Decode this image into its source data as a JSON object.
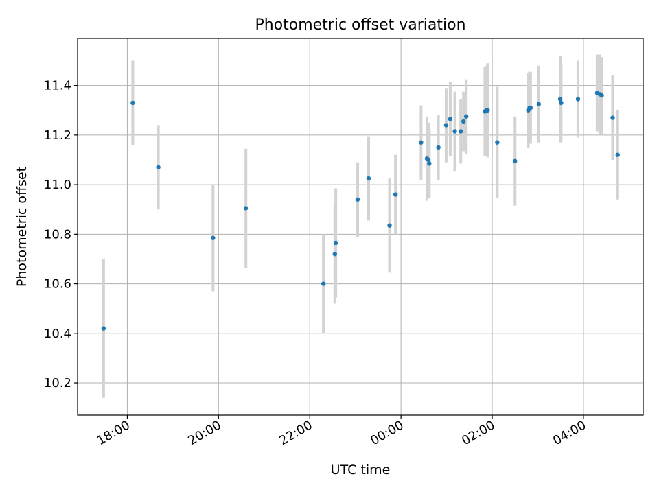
{
  "chart_data": {
    "type": "scatter",
    "title": "Photometric offset variation",
    "xlabel": "UTC time",
    "ylabel": "Photometric offset",
    "x_unit": "hours since 00:00 UTC (negative = previous evening)",
    "xlim": [
      -7.09,
      5.31
    ],
    "ylim": [
      10.07,
      11.59
    ],
    "x_ticks": [
      {
        "value": -6,
        "label": "18:00"
      },
      {
        "value": -4,
        "label": "20:00"
      },
      {
        "value": -2,
        "label": "22:00"
      },
      {
        "value": 0,
        "label": "00:00"
      },
      {
        "value": 2,
        "label": "02:00"
      },
      {
        "value": 4,
        "label": "04:00"
      }
    ],
    "y_ticks": [
      {
        "value": 10.2,
        "label": "10.2"
      },
      {
        "value": 10.4,
        "label": "10.4"
      },
      {
        "value": 10.6,
        "label": "10.6"
      },
      {
        "value": 10.8,
        "label": "10.8"
      },
      {
        "value": 11.0,
        "label": "11.0"
      },
      {
        "value": 11.2,
        "label": "11.2"
      },
      {
        "value": 11.4,
        "label": "11.4"
      }
    ],
    "grid": true,
    "colors": {
      "point": "#1f77b4",
      "errorbar": "#d3d3d3",
      "grid": "#b0b0b0"
    },
    "points": [
      {
        "x": -6.52,
        "y": 10.42,
        "err": 0.28
      },
      {
        "x": -5.88,
        "y": 11.33,
        "err": 0.17
      },
      {
        "x": -5.32,
        "y": 11.07,
        "err": 0.17
      },
      {
        "x": -4.12,
        "y": 10.785,
        "err": 0.215
      },
      {
        "x": -3.4,
        "y": 10.905,
        "err": 0.24
      },
      {
        "x": -1.7,
        "y": 10.6,
        "err": 0.2
      },
      {
        "x": -1.45,
        "y": 10.72,
        "err": 0.2
      },
      {
        "x": -1.43,
        "y": 10.765,
        "err": 0.22
      },
      {
        "x": -0.95,
        "y": 10.94,
        "err": 0.15
      },
      {
        "x": -0.71,
        "y": 11.025,
        "err": 0.17
      },
      {
        "x": -0.25,
        "y": 10.835,
        "err": 0.19
      },
      {
        "x": -0.12,
        "y": 10.96,
        "err": 0.16
      },
      {
        "x": 0.44,
        "y": 11.17,
        "err": 0.15
      },
      {
        "x": 0.57,
        "y": 11.105,
        "err": 0.17
      },
      {
        "x": 0.6,
        "y": 11.1,
        "err": 0.15
      },
      {
        "x": 0.62,
        "y": 11.085,
        "err": 0.14
      },
      {
        "x": 0.82,
        "y": 11.15,
        "err": 0.13
      },
      {
        "x": 0.99,
        "y": 11.24,
        "err": 0.15
      },
      {
        "x": 1.08,
        "y": 11.265,
        "err": 0.15
      },
      {
        "x": 1.18,
        "y": 11.215,
        "err": 0.16
      },
      {
        "x": 1.31,
        "y": 11.215,
        "err": 0.13
      },
      {
        "x": 1.37,
        "y": 11.255,
        "err": 0.12
      },
      {
        "x": 1.43,
        "y": 11.275,
        "err": 0.15
      },
      {
        "x": 1.84,
        "y": 11.295,
        "err": 0.18
      },
      {
        "x": 1.87,
        "y": 11.3,
        "err": 0.18
      },
      {
        "x": 1.9,
        "y": 11.3,
        "err": 0.19
      },
      {
        "x": 2.11,
        "y": 11.17,
        "err": 0.225
      },
      {
        "x": 2.5,
        "y": 11.095,
        "err": 0.18
      },
      {
        "x": 2.79,
        "y": 11.3,
        "err": 0.15
      },
      {
        "x": 2.82,
        "y": 11.31,
        "err": 0.145
      },
      {
        "x": 2.84,
        "y": 11.31,
        "err": 0.145
      },
      {
        "x": 3.02,
        "y": 11.325,
        "err": 0.155
      },
      {
        "x": 3.49,
        "y": 11.345,
        "err": 0.175
      },
      {
        "x": 3.51,
        "y": 11.33,
        "err": 0.155
      },
      {
        "x": 3.88,
        "y": 11.345,
        "err": 0.155
      },
      {
        "x": 4.3,
        "y": 11.37,
        "err": 0.155
      },
      {
        "x": 4.36,
        "y": 11.365,
        "err": 0.16
      },
      {
        "x": 4.4,
        "y": 11.36,
        "err": 0.155
      },
      {
        "x": 4.64,
        "y": 11.27,
        "err": 0.17
      },
      {
        "x": 4.75,
        "y": 11.12,
        "err": 0.18
      }
    ]
  }
}
